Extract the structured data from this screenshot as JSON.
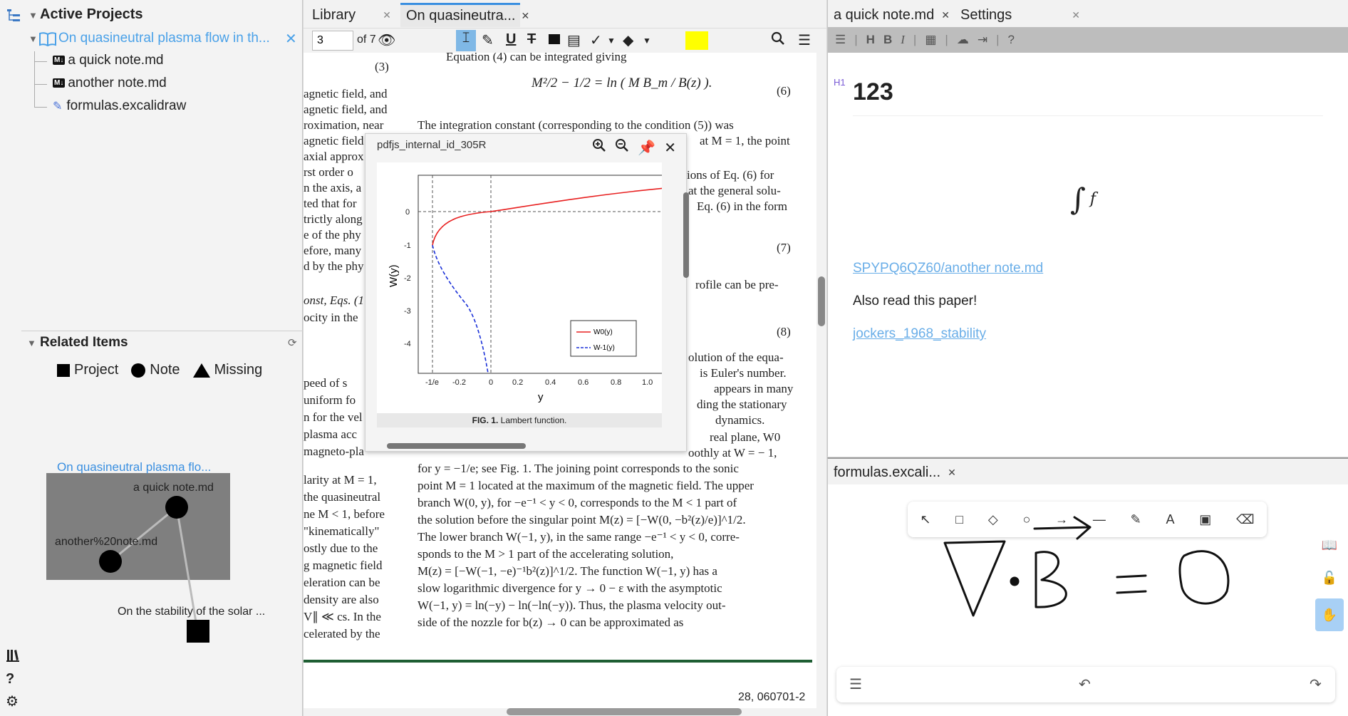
{
  "sidebar": {
    "title": "Active Projects",
    "project": {
      "label": "On quasineutral plasma flow in th..."
    },
    "children": [
      {
        "label": "a quick note.md",
        "type": "md"
      },
      {
        "label": "another note.md",
        "type": "md"
      },
      {
        "label": "formulas.excalidraw",
        "type": "excalidraw"
      }
    ],
    "related": {
      "title": "Related Items",
      "legend": [
        "Project",
        "Note",
        "Missing"
      ],
      "graph": {
        "title": "On quasineutral plasma flo...",
        "node_a": "a quick note.md",
        "node_b": "another%20note.md",
        "node_c": "On the stability of the solar ..."
      }
    }
  },
  "center": {
    "tabs": [
      {
        "label": "Library"
      },
      {
        "label": "On quasineutra..."
      }
    ],
    "toolbar": {
      "page": "3",
      "of_pages": "of 7",
      "highlight_color": "#ffff00"
    },
    "popup": {
      "title": "pdfjs_internal_id_305R",
      "caption_bold": "FIG. 1.",
      "caption": "Lambert function.",
      "fig": {
        "ylabel": "W(y)",
        "xlabel": "y",
        "xticks": [
          "-1/e",
          "-0.2",
          "0",
          "0.2",
          "0.4",
          "0.6",
          "0.8",
          "1.0"
        ],
        "yticks": [
          "0",
          "-1",
          "-2",
          "-3",
          "-4"
        ],
        "legend": [
          "W0(y)",
          "W-1(y)"
        ]
      }
    },
    "page_number": "28, 060701-2",
    "text": {
      "eq3": "(3)",
      "eq6": "(6)",
      "eq7": "(7)",
      "eq8": "(8)",
      "intro": "Equation (4) can be integrated giving",
      "formula6": "M²/2 − 1/2 = ln ( M B_m / B(z) ).",
      "p1": "The integration constant (corresponding to the condition (5)) was",
      "p2": "at M = 1, the point",
      "p3": "ions of Eq. (6) for",
      "p4": "at the general solu-",
      "p5": "Eq. (6) in the form",
      "p6": "rofile can be pre-",
      "p7": "olution of the equa-",
      "p8": "is Euler's number.",
      "p9": "appears in many",
      "p10": "ding the stationary",
      "p11": "dynamics.",
      "p12": "real plane, W0",
      "p13": "oothly at W = − 1,",
      "b1": "for y = −1/e; see Fig. 1. The joining point corresponds to the sonic",
      "b2": "point M = 1 located at the maximum of the magnetic field. The upper",
      "b3": "branch W(0, y), for −e⁻¹ < y < 0, corresponds to the M < 1 part of",
      "b4": "the solution before the singular point M(z) = [−W(0, −b²(z)/e)]^1/2.",
      "b5": "The lower branch W(−1, y), in the same range −e⁻¹ < y < 0, corre-",
      "b6": "sponds to the M > 1 part of the accelerating solution,",
      "b7": "M(z) = [−W(−1, −e)⁻¹b²(z)]^1/2. The function W(−1, y) has a",
      "b8": "slow logarithmic divergence for y → 0 − ε with the asymptotic",
      "b9": "W(−1, y) = ln(−y) − ln(−ln(−y)). Thus, the plasma velocity out-",
      "b10": "side of the nozzle for b(z) → 0 can be approximated as",
      "l1": "agnetic field, and",
      "l2": "agnetic field, and",
      "l3": "roximation, near",
      "l4": "agnetic field",
      "l5": "axial approx",
      "l6": "rst order o",
      "l7": "n the axis, a",
      "l8": "ted that for",
      "l9": "trictly along",
      "l10": "e of the phy",
      "l11": "efore, many",
      "l12": "d by the phy",
      "l13": "onst, Eqs. (1",
      "l14": "ocity in the",
      "l15": "peed of s",
      "l16": "uniform fo",
      "l17": "n for the vel",
      "l18": "plasma acc",
      "l19": "magneto-pla",
      "l20": "larity at M = 1,",
      "l21": "the quasineutral",
      "l22": "ne M < 1, before",
      "l23": "\"kinematically\"",
      "l24": "ostly due to the",
      "l25": "g magnetic field",
      "l26": "eleration can be",
      "l27": "density are also",
      "l28": "V∥ ≪ cs. In the",
      "l29": "celerated by the"
    }
  },
  "note": {
    "tabs": [
      {
        "label": "a quick note.md"
      },
      {
        "label": "Settings"
      }
    ],
    "h1_badge": "H1",
    "heading": "123",
    "integral": "f",
    "link1": "SPYPQ6QZ60/another note.md",
    "text": "Also read this paper!",
    "link2": "jockers_1968_stability"
  },
  "excalidraw": {
    "tab": "formulas.excali..."
  }
}
